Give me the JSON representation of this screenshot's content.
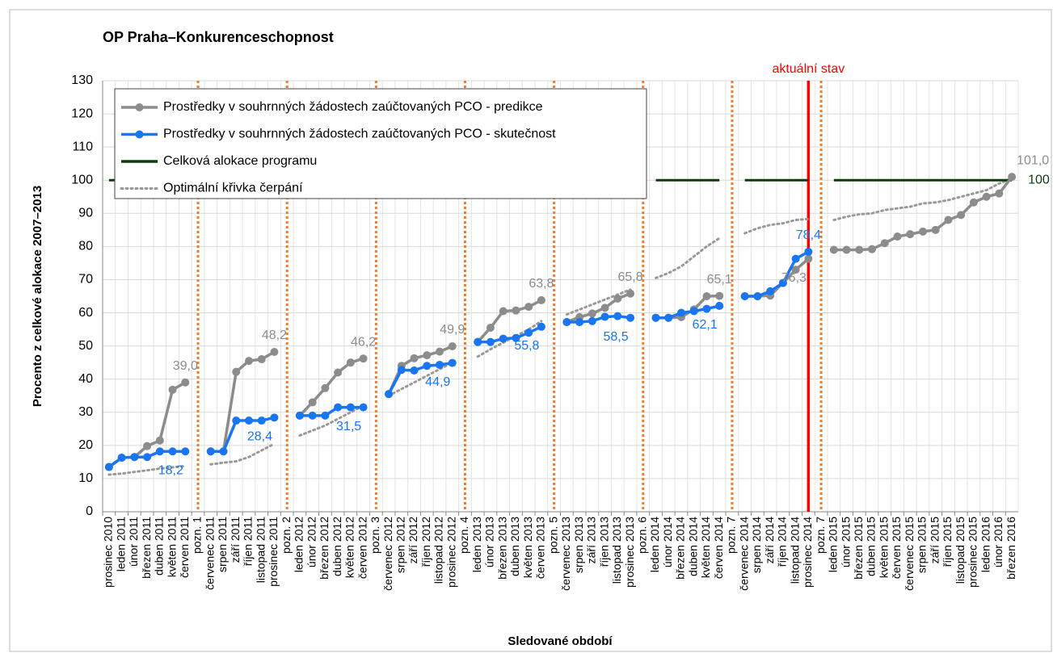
{
  "chart_data": {
    "type": "line",
    "title": "OP Praha–Konkurenceschopnost",
    "ylabel": "Procento z celkové alokace 2007–2013",
    "xlabel": "Sledované období",
    "annotation": {
      "text": "aktuální stav",
      "category": "prosinec 2014",
      "color": "#ff0000"
    },
    "separator_color": "#ed7d31",
    "grid": true,
    "legend": "upper left",
    "ylim": [
      0,
      130
    ],
    "yticks": [
      0,
      10,
      20,
      30,
      40,
      50,
      60,
      70,
      80,
      90,
      100,
      110,
      120,
      130
    ],
    "categories": [
      "prosinec 2010",
      "leden 2011",
      "únor 2011",
      "březen 2011",
      "duben 2011",
      "květen 2011",
      "červen 2011",
      "pozn. 1",
      "červenec 2011",
      "srpen 2011",
      "září 2011",
      "říjen 2011",
      "listopad 2011",
      "prosinec 2011",
      "pozn. 2",
      "leden 2012",
      "únor 2012",
      "březen 2012",
      "duben 2012",
      "květen 2012",
      "červen 2012",
      "pozn. 3",
      "červenec 2012",
      "srpen 2012",
      "září 2012",
      "říjen 2012",
      "listopad 2012",
      "prosinec 2012",
      "pozn. 4",
      "leden 2013",
      "únor 2013",
      "březen 2013",
      "duben 2013",
      "květen 2013",
      "červen 2013",
      "pozn. 5",
      "červenec 2013",
      "srpen 2013",
      "září 2013",
      "říjen 2013",
      "listopad 2013",
      "prosinec 2013",
      "pozn. 6",
      "leden 2014",
      "únor 2014",
      "březen 2014",
      "duben 2014",
      "květen 2014",
      "červen 2014",
      "pozn. 7",
      "červenec 2014",
      "srpen 2014",
      "září 2014",
      "říjen 2014",
      "listopad 2014",
      "prosinec 2014",
      "pozn. 7",
      "leden 2015",
      "únor 2015",
      "březen 2015",
      "duben 2015",
      "květen 2015",
      "červen 2015",
      "červenec 2015",
      "srpen 2015",
      "září 2015",
      "říjen 2015",
      "listopad 2015",
      "prosinec 2015",
      "leden 2016",
      "únor 2016",
      "březen 2016"
    ],
    "series": [
      {
        "name": "Prostředky v souhrnných žádostech zaúčtovaných PCO - predikce",
        "color": "#8c8c8c",
        "style": "markers",
        "values": [
          13.5,
          16.3,
          16.5,
          19.8,
          21.5,
          36.8,
          39.0,
          null,
          18.2,
          18.2,
          42.2,
          45.5,
          46.0,
          48.2,
          null,
          29.0,
          33.0,
          37.3,
          42.0,
          45.0,
          46.2,
          null,
          35.5,
          44.0,
          46.3,
          47.2,
          48.3,
          49.9,
          null,
          51.2,
          55.5,
          60.5,
          60.7,
          61.8,
          63.8,
          null,
          57.2,
          58.7,
          59.8,
          61.5,
          64.3,
          65.8,
          null,
          58.5,
          58.5,
          58.7,
          61.0,
          65.0,
          65.1,
          null,
          65.0,
          65.0,
          65.2,
          69.0,
          73.0,
          76.3,
          null,
          79.0,
          79.0,
          79.0,
          79.2,
          81.0,
          83.0,
          83.7,
          84.5,
          85.0,
          88.0,
          89.5,
          93.3,
          95.0,
          96.0,
          101.0
        ],
        "value_labels": [
          null,
          null,
          null,
          null,
          null,
          null,
          "39,0",
          null,
          null,
          null,
          null,
          null,
          null,
          "48,2",
          null,
          null,
          null,
          null,
          null,
          null,
          "46,2",
          null,
          null,
          null,
          null,
          null,
          null,
          "49,9",
          null,
          null,
          null,
          null,
          null,
          null,
          "63,8",
          null,
          null,
          null,
          null,
          null,
          null,
          "65,8",
          null,
          null,
          null,
          null,
          null,
          null,
          "65,1",
          null,
          null,
          null,
          null,
          null,
          null,
          "76,3",
          null,
          null,
          null,
          null,
          null,
          null,
          null,
          null,
          null,
          null,
          null,
          null,
          null,
          null,
          null,
          "101,0"
        ]
      },
      {
        "name": "Prostředky v souhrnných žádostech zaúčtovaných PCO - skutečnost",
        "color": "#1a75f0",
        "style": "markers",
        "values": [
          13.5,
          16.3,
          16.5,
          16.5,
          18.2,
          18.2,
          18.2,
          null,
          18.2,
          18.2,
          27.5,
          27.5,
          27.5,
          28.4,
          null,
          29.0,
          29.0,
          29.0,
          31.5,
          31.5,
          31.5,
          null,
          35.5,
          42.8,
          42.6,
          44.0,
          44.3,
          44.9,
          null,
          51.2,
          51.2,
          52.2,
          52.4,
          54.0,
          55.8,
          null,
          57.2,
          57.2,
          57.5,
          58.8,
          59.0,
          58.5,
          null,
          58.5,
          58.5,
          60.0,
          60.5,
          61.2,
          62.1,
          null,
          65.0,
          65.0,
          66.5,
          69.0,
          76.3,
          78.4,
          null,
          null,
          null,
          null,
          null,
          null,
          null,
          null,
          null,
          null,
          null,
          null,
          null,
          null,
          null,
          null
        ],
        "value_labels": [
          null,
          null,
          null,
          null,
          null,
          null,
          "18,2",
          null,
          null,
          null,
          null,
          null,
          null,
          "28,4",
          null,
          null,
          null,
          null,
          null,
          null,
          "31,5",
          null,
          null,
          null,
          null,
          null,
          null,
          "44,9",
          null,
          null,
          null,
          null,
          null,
          null,
          "55,8",
          null,
          null,
          null,
          null,
          null,
          null,
          "58,5",
          null,
          null,
          null,
          null,
          null,
          null,
          "62,1",
          null,
          null,
          null,
          null,
          null,
          null,
          "78,4",
          null,
          null,
          null,
          null,
          null,
          null,
          null,
          null,
          null,
          null,
          null,
          null,
          null,
          null,
          null,
          null
        ]
      },
      {
        "name": "Celková alokace programu",
        "color": "#0b3d0b",
        "style": "solid",
        "values": [
          100,
          100,
          100,
          100,
          100,
          100,
          100,
          null,
          100,
          100,
          100,
          100,
          100,
          100,
          null,
          100,
          100,
          100,
          100,
          100,
          100,
          null,
          100,
          100,
          100,
          100,
          100,
          100,
          null,
          100,
          100,
          100,
          100,
          100,
          100,
          null,
          100,
          100,
          100,
          100,
          100,
          100,
          null,
          100,
          100,
          100,
          100,
          100,
          100,
          null,
          100,
          100,
          100,
          100,
          100,
          100,
          null,
          100,
          100,
          100,
          100,
          100,
          100,
          100,
          100,
          100,
          100,
          100,
          100,
          100,
          100,
          100
        ],
        "value_labels": [
          null,
          null,
          null,
          null,
          null,
          null,
          null,
          null,
          null,
          null,
          null,
          null,
          null,
          null,
          null,
          null,
          null,
          null,
          null,
          null,
          null,
          null,
          null,
          null,
          null,
          null,
          null,
          null,
          null,
          null,
          null,
          null,
          null,
          null,
          null,
          null,
          null,
          null,
          null,
          null,
          null,
          null,
          null,
          null,
          null,
          null,
          null,
          null,
          null,
          null,
          null,
          null,
          null,
          null,
          null,
          null,
          null,
          null,
          null,
          null,
          null,
          null,
          null,
          null,
          null,
          null,
          null,
          null,
          null,
          null,
          null,
          "100"
        ]
      },
      {
        "name": "Optimální křivka čerpání",
        "color": "#999999",
        "style": "dotted",
        "values": [
          11.2,
          11.5,
          12.0,
          12.5,
          13.0,
          13.4,
          13.8,
          null,
          14.3,
          14.8,
          15.2,
          16.5,
          18.5,
          20.5,
          null,
          23.0,
          24.5,
          26.0,
          28.0,
          30.0,
          32.0,
          null,
          35.0,
          37.0,
          39.0,
          41.0,
          43.0,
          45.0,
          null,
          46.8,
          49.0,
          51.0,
          53.0,
          55.0,
          57.5,
          null,
          59.5,
          61.0,
          62.5,
          64.0,
          65.5,
          67.0,
          null,
          70.5,
          72.0,
          74.0,
          77.0,
          80.0,
          82.5,
          null,
          84.0,
          85.5,
          86.5,
          87.0,
          88.0,
          88.3,
          null,
          88.0,
          89.0,
          89.7,
          90.0,
          91.0,
          91.5,
          92.0,
          93.0,
          93.3,
          94.0,
          95.0,
          96.0,
          97.0,
          99.0,
          100.5
        ]
      }
    ]
  }
}
